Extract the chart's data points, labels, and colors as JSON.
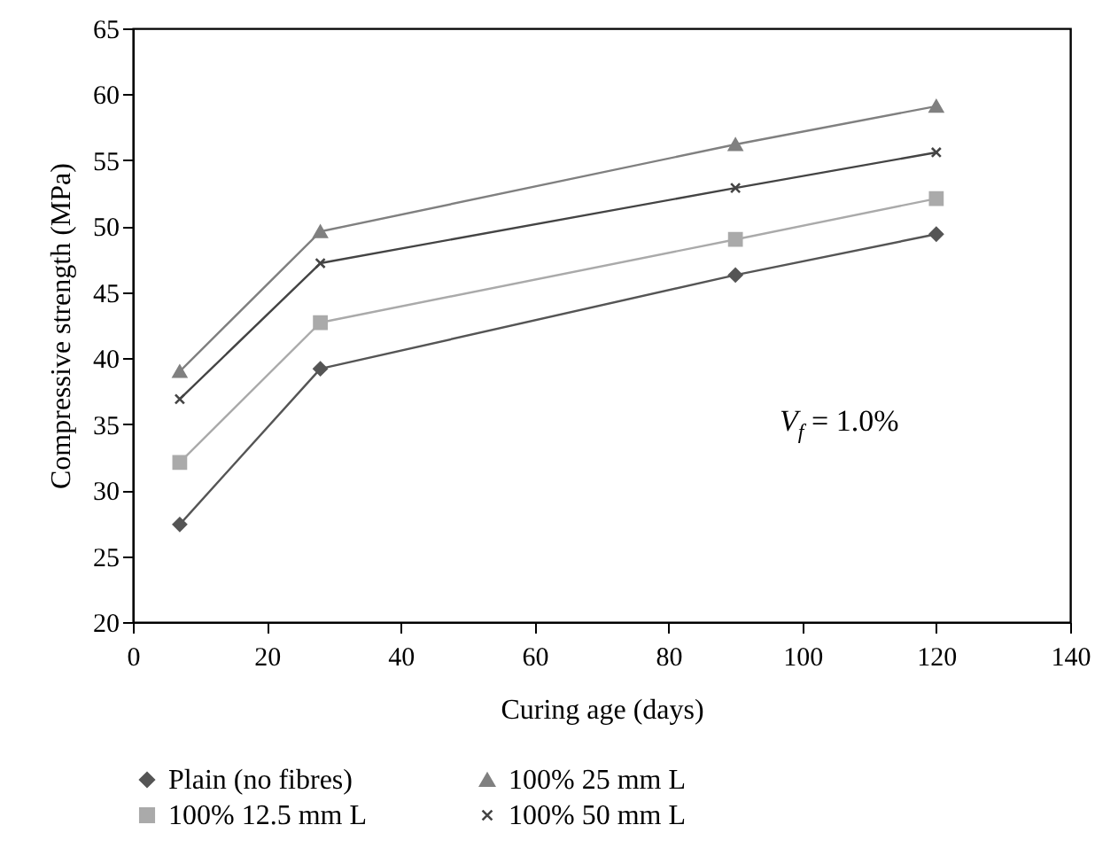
{
  "chart_data": {
    "type": "line",
    "xlabel": "Curing age (days)",
    "ylabel": "Compressive strength (MPa)",
    "x": [
      7,
      28,
      90,
      120
    ],
    "series": [
      {
        "name": "Plain (no fibres)",
        "color": "#555555",
        "marker": "diamond",
        "values": [
          27.4,
          39.2,
          46.3,
          49.4
        ]
      },
      {
        "name": "100% 12.5 mm L",
        "color": "#aaaaaa",
        "marker": "square",
        "values": [
          32.1,
          42.7,
          49.0,
          52.1
        ]
      },
      {
        "name": "100% 25 mm L",
        "color": "#808080",
        "marker": "triangle",
        "values": [
          39.0,
          49.6,
          56.2,
          59.1
        ]
      },
      {
        "name": "100% 50 mm L",
        "color": "#444444",
        "marker": "cross",
        "values": [
          36.9,
          47.2,
          52.9,
          55.6
        ]
      }
    ],
    "xlim": [
      0,
      140
    ],
    "xticks": [
      0,
      20,
      40,
      60,
      80,
      100,
      120,
      140
    ],
    "ylim": [
      20,
      65
    ],
    "yticks": [
      20,
      25,
      30,
      35,
      40,
      45,
      50,
      55,
      60,
      65
    ],
    "grid": false,
    "legend": "bottom",
    "line_style": "solid",
    "annotations": [
      "V$_{f}$ = 1.0%"
    ]
  }
}
